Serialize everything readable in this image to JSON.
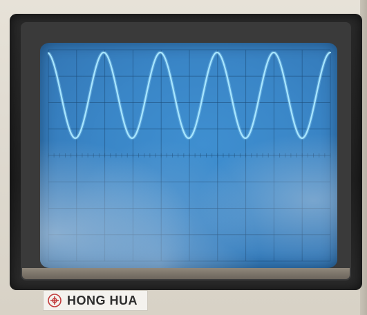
{
  "device": {
    "brand_label": "HONG HUA",
    "logo_icon": "honghua-logo-icon"
  },
  "screen": {
    "background_color": "#3a86c7",
    "trace_color": "#a9e6ff",
    "graticule_color": "#1d4c78"
  }
}
